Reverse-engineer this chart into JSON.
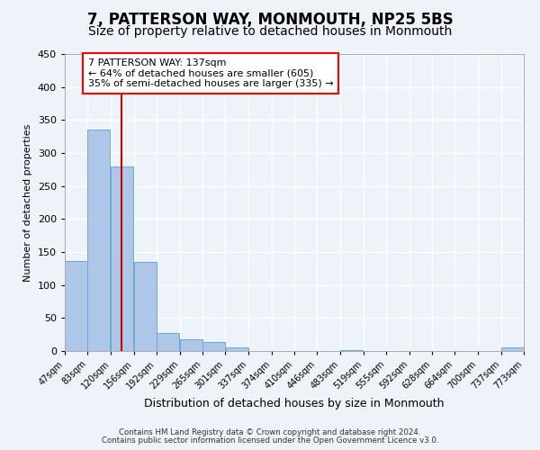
{
  "title": "7, PATTERSON WAY, MONMOUTH, NP25 5BS",
  "subtitle": "Size of property relative to detached houses in Monmouth",
  "xlabel": "Distribution of detached houses by size in Monmouth",
  "ylabel": "Number of detached properties",
  "bins": [
    47,
    83,
    120,
    156,
    192,
    229,
    265,
    301,
    337,
    374,
    410,
    446,
    483,
    519,
    555,
    592,
    628,
    664,
    700,
    737,
    773
  ],
  "counts": [
    136,
    336,
    280,
    135,
    27,
    18,
    13,
    6,
    0,
    0,
    0,
    0,
    2,
    0,
    0,
    0,
    0,
    0,
    0,
    5
  ],
  "bar_color": "#aec6e8",
  "bar_edgecolor": "#6aaad4",
  "property_line_x": 137,
  "property_line_color": "#cc0000",
  "annotation_line1": "7 PATTERSON WAY: 137sqm",
  "annotation_line2": "← 64% of detached houses are smaller (605)",
  "annotation_line3": "35% of semi-detached houses are larger (335) →",
  "ylim": [
    0,
    450
  ],
  "footer1": "Contains HM Land Registry data © Crown copyright and database right 2024.",
  "footer2": "Contains public sector information licensed under the Open Government Licence v3.0.",
  "background_color": "#eef2f9",
  "grid_color": "#ffffff",
  "title_fontsize": 12,
  "subtitle_fontsize": 10,
  "tick_labels": [
    "47sqm",
    "83sqm",
    "120sqm",
    "156sqm",
    "192sqm",
    "229sqm",
    "265sqm",
    "301sqm",
    "337sqm",
    "374sqm",
    "410sqm",
    "446sqm",
    "483sqm",
    "519sqm",
    "555sqm",
    "592sqm",
    "628sqm",
    "664sqm",
    "700sqm",
    "737sqm",
    "773sqm"
  ]
}
